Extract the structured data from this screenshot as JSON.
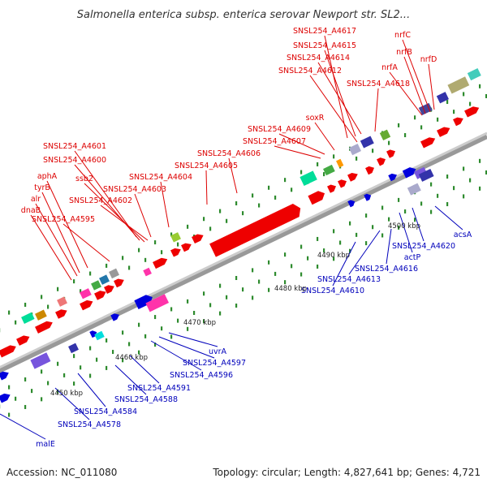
{
  "title": "Salmonella enterica subsp. enterica serovar Newport str. SL2...",
  "footer": {
    "accession": "Accession: NC_011080",
    "topology": "Topology: circular; Length: 4,827,641 bp; Genes: 4,721"
  },
  "colors": {
    "forward_label": "#dd0000",
    "reverse_label": "#0000bb",
    "backbone": "#aaaaaa",
    "tick": "#2e8b2e"
  },
  "kbp_labels": [
    "4450 kbp",
    "4460 kbp",
    "4470 kbp",
    "4480 kbp",
    "4490 kbp",
    "4500 kbp"
  ],
  "forward_gene_labels": [
    "SNSL254_A4617",
    "SNSL254_A4615",
    "SNSL254_A4614",
    "SNSL254_A4612",
    "SNSL254_A4618",
    "nrfC",
    "nrfB",
    "nrfA",
    "nrfD",
    "soxR",
    "SNSL254_A4609",
    "SNSL254_A4607",
    "SNSL254_A4606",
    "SNSL254_A4605",
    "SNSL254_A4601",
    "SNSL254_A4600",
    "ssb2",
    "SNSL254_A4604",
    "SNSL254_A4603",
    "SNSL254_A4602",
    "aphA",
    "tyrB",
    "alr",
    "dnaB",
    "SNSL254_A4595"
  ],
  "reverse_gene_labels": [
    "acsA",
    "SNSL254_A4620",
    "actP",
    "SNSL254_A4616",
    "SNSL254_A4613",
    "SNSL254_A4610",
    "uvrA",
    "SNSL254_A4597",
    "SNSL254_A4596",
    "SNSL254_A4591",
    "SNSL254_A4588",
    "SNSL254_A4584",
    "SNSL254_A4578",
    "malE"
  ]
}
